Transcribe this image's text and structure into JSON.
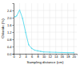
{
  "chart_data": {
    "type": "line",
    "x": [
      0.5,
      1.0,
      2.0,
      3.0,
      4.0,
      5.0,
      6.0,
      7.0,
      8.0,
      9.0,
      10.0,
      12.0,
      14.0,
      16.0,
      18.0,
      20.0
    ],
    "values": [
      2.05,
      2.1,
      2.42,
      1.95,
      1.18,
      0.5,
      0.3,
      0.2,
      0.16,
      0.13,
      0.1,
      0.09,
      0.08,
      0.07,
      0.06,
      0.06
    ],
    "color": "#66ddee",
    "marker": "circle",
    "xlabel": "Sampling distance (cm)",
    "ylabel": "Chloride (%)",
    "xlim": [
      0,
      21
    ],
    "ylim": [
      0,
      2.8
    ],
    "xticks": [
      0,
      2,
      4,
      6,
      8,
      10,
      12,
      14,
      16,
      18,
      20
    ],
    "yticks": [
      {
        "value": 0.0,
        "label": "0.0"
      },
      0.4,
      0.8,
      1.2,
      1.6,
      {
        "value": 2.0,
        "label": "2.0"
      },
      2.4
    ],
    "grid": true
  }
}
